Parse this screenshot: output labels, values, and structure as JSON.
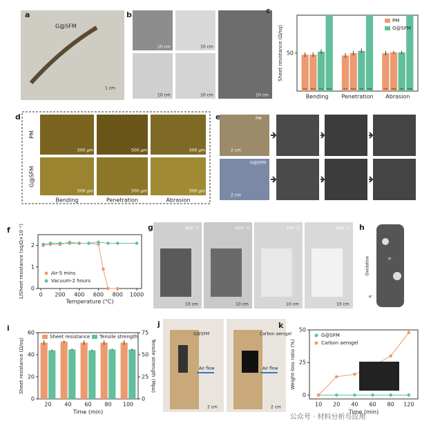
{
  "chart_data": [
    {
      "type": "bar",
      "label": "c",
      "ylabel": "Sheet resistance (Ω/sq)",
      "categories": [
        "Bending",
        "Penetration",
        "Abrasion"
      ],
      "subcategories": [
        "Pre",
        "Post"
      ],
      "series": [
        {
          "name": "PM",
          "color": "#ec9a6f",
          "values": [
            [
              48,
              48
            ],
            [
              47,
              50
            ],
            [
              50,
              51
            ]
          ],
          "errors": [
            [
              3,
              3
            ],
            [
              3,
              3
            ],
            [
              3,
              2
            ]
          ]
        },
        {
          "name": "G@SFM",
          "color": "#62bf9c",
          "values": [
            [
              52,
              100
            ],
            [
              53,
              100
            ],
            [
              51,
              100
            ]
          ],
          "errors": [
            [
              3,
              null
            ],
            [
              3,
              null
            ],
            [
              2,
              null
            ]
          ]
        }
      ],
      "ylim": [
        0,
        100
      ],
      "yticks": [
        50
      ],
      "legend": "upper right"
    },
    {
      "type": "line",
      "label": "f",
      "xlabel": "Temperature (°C)",
      "ylabel": "1/Sheet resistance (sq/Ω×10⁻²)",
      "series": [
        {
          "name": "Air-5 mins",
          "color": "#ec9a6f",
          "x": [
            25,
            100,
            200,
            300,
            400,
            500,
            600,
            650,
            700,
            800
          ],
          "values": [
            2.0,
            2.05,
            2.05,
            2.15,
            2.1,
            2.1,
            2.05,
            0.9,
            0,
            0
          ]
        },
        {
          "name": "Vacuum-2 hours",
          "color": "#62bf9c",
          "x": [
            25,
            100,
            200,
            300,
            400,
            500,
            600,
            700,
            800,
            1000
          ],
          "values": [
            2.05,
            2.1,
            2.1,
            2.1,
            2.1,
            2.1,
            2.15,
            2.1,
            2.1,
            2.1
          ]
        }
      ],
      "xlim": [
        -30,
        1050
      ],
      "xticks": [
        0,
        200,
        400,
        600,
        800,
        1000
      ],
      "ylim": [
        0,
        2.5
      ],
      "yticks": [
        0,
        1,
        2
      ],
      "legend": "lower left"
    },
    {
      "type": "bar",
      "label": "i",
      "xlabel": "Time (min)",
      "ylabel": "Sheet resistance (Ω/sq)",
      "y2label": "Tensile strength (Mpa)",
      "categories": [
        "20",
        "40",
        "60",
        "80",
        "100"
      ],
      "series": [
        {
          "name": "Sheet resistance",
          "color": "#ec9a6f",
          "values": [
            51,
            52,
            51,
            51,
            51
          ],
          "errors": [
            2,
            1,
            2,
            2,
            2
          ]
        },
        {
          "name": "Tensile strength",
          "color": "#62bf9c",
          "axis": "y2",
          "values": [
            55,
            56,
            55,
            56,
            56
          ],
          "errors": [
            1,
            1,
            1,
            1,
            1
          ]
        }
      ],
      "ylim": [
        0,
        60
      ],
      "yticks": [
        0,
        20,
        40,
        60
      ],
      "y2lim": [
        0,
        75
      ],
      "y2ticks": [
        0,
        25,
        50,
        75
      ],
      "legend": "upper center"
    },
    {
      "type": "line",
      "label": "k",
      "xlabel": "Time (min)",
      "ylabel": "Weight-loss ratio (%)",
      "categories": [
        "10",
        "20",
        "40",
        "60",
        "80",
        "120"
      ],
      "series": [
        {
          "name": "G@SFM",
          "color": "#62bf9c",
          "values": [
            0,
            0,
            0,
            0,
            0,
            0
          ]
        },
        {
          "name": "Carbon aerogel",
          "color": "#ec9a6f",
          "values": [
            0,
            14,
            16,
            22,
            30,
            48
          ]
        }
      ],
      "ylim": [
        -3,
        50
      ],
      "yticks": [
        0,
        25,
        50
      ],
      "legend": "upper left"
    }
  ],
  "panels": {
    "a": {
      "label": "a",
      "sample": "G@SFM",
      "scale": "1 cm"
    },
    "b": {
      "label": "b",
      "scale": "10 cm"
    },
    "d": {
      "label": "d",
      "rows": [
        "PM",
        "G@SFM"
      ],
      "columns": [
        "Bending",
        "Penetration",
        "Abrasion"
      ],
      "scale": "500 μm"
    },
    "e": {
      "label": "e",
      "rows": [
        "PM",
        "G@SFM"
      ],
      "scale": "2 cm"
    },
    "g": {
      "label": "g",
      "temperatures": [
        "600 °C",
        "650 °C",
        "700 °C",
        "800 °C"
      ],
      "scale": "10 cm"
    },
    "h": {
      "label": "h",
      "text": "Oxidation",
      "electron": "e⁻"
    },
    "j": {
      "label": "j",
      "samples": [
        "G@SFM",
        "Carbon aerogel"
      ],
      "flow": "Air flow",
      "scale": "2 cm"
    }
  },
  "watermark": "公众号 · 材料分析与应用"
}
